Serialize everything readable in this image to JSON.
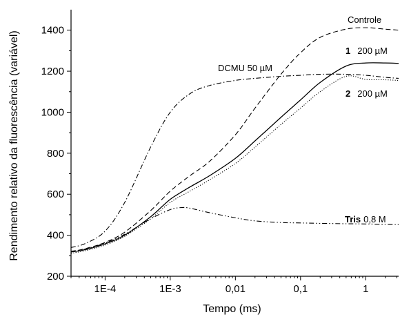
{
  "chart_data": {
    "type": "line",
    "title": "",
    "xlabel": "Tempo (ms)",
    "ylabel": "Rendimento relativo da fluorescência (variável)",
    "x_scale": "log",
    "xlim": [
      3e-05,
      3.2
    ],
    "ylim": [
      200,
      1500
    ],
    "x_ticks": [
      {
        "value": 0.0001,
        "label": "1E-4"
      },
      {
        "value": 0.001,
        "label": "1E-3"
      },
      {
        "value": 0.01,
        "label": "0,01"
      },
      {
        "value": 0.1,
        "label": "0,1"
      },
      {
        "value": 1,
        "label": "1"
      }
    ],
    "y_ticks": [
      {
        "value": 200,
        "label": "200"
      },
      {
        "value": 400,
        "label": "400"
      },
      {
        "value": 600,
        "label": "600"
      },
      {
        "value": 800,
        "label": "800"
      },
      {
        "value": 1000,
        "label": "1000"
      },
      {
        "value": 1200,
        "label": "1200"
      },
      {
        "value": 1400,
        "label": "1400"
      }
    ],
    "grid": false,
    "annotations": [
      {
        "id": "controle",
        "parts": [
          {
            "text": "Controle",
            "bold": false
          }
        ]
      },
      {
        "id": "cmp1",
        "parts": [
          {
            "text": "1",
            "bold": true
          },
          {
            "text": "200 µM",
            "bold": false
          }
        ]
      },
      {
        "id": "dcmu",
        "parts": [
          {
            "text": "DCMU 50 µM",
            "bold": false
          }
        ]
      },
      {
        "id": "cmp2",
        "parts": [
          {
            "text": "2",
            "bold": true
          },
          {
            "text": "200 µM",
            "bold": false
          }
        ]
      },
      {
        "id": "tris",
        "parts": [
          {
            "text": "Tris",
            "bold": true
          },
          {
            "text": "0,8 M",
            "bold": false
          }
        ]
      }
    ],
    "series": [
      {
        "style": "dashed",
        "x": [
          3e-05,
          5e-05,
          0.0001,
          0.0002,
          0.0005,
          0.001,
          0.002,
          0.004,
          0.01,
          0.02,
          0.05,
          0.1,
          0.2,
          0.5,
          1,
          2,
          3.2
        ],
        "y": [
          320,
          335,
          365,
          415,
          520,
          615,
          690,
          760,
          890,
          1020,
          1185,
          1290,
          1365,
          1405,
          1412,
          1405,
          1400
        ]
      },
      {
        "style": "solid",
        "x": [
          3e-05,
          5e-05,
          0.0001,
          0.0002,
          0.0005,
          0.001,
          0.002,
          0.004,
          0.01,
          0.02,
          0.05,
          0.1,
          0.2,
          0.5,
          1,
          2,
          3.2
        ],
        "y": [
          318,
          330,
          358,
          400,
          490,
          575,
          635,
          690,
          775,
          860,
          975,
          1060,
          1145,
          1225,
          1240,
          1240,
          1238
        ]
      },
      {
        "style": "dotted",
        "x": [
          3e-05,
          5e-05,
          0.0001,
          0.0002,
          0.0005,
          0.001,
          0.002,
          0.004,
          0.01,
          0.02,
          0.05,
          0.1,
          0.2,
          0.5,
          1,
          2,
          3.2
        ],
        "y": [
          312,
          325,
          352,
          395,
          480,
          560,
          615,
          670,
          750,
          830,
          940,
          1020,
          1100,
          1175,
          1160,
          1158,
          1155
        ]
      },
      {
        "style": "dashdot",
        "x": [
          3e-05,
          5e-05,
          0.0001,
          0.0002,
          0.0005,
          0.001,
          0.002,
          0.004,
          0.01,
          0.02,
          0.05,
          0.1,
          0.2,
          0.5,
          1,
          2,
          3.2
        ],
        "y": [
          340,
          360,
          420,
          560,
          830,
          1000,
          1090,
          1130,
          1155,
          1165,
          1175,
          1180,
          1185,
          1185,
          1180,
          1170,
          1165
        ]
      },
      {
        "style": "dashdotdot",
        "x": [
          3e-05,
          5e-05,
          0.0001,
          0.0002,
          0.0005,
          0.001,
          0.0015,
          0.002,
          0.004,
          0.01,
          0.02,
          0.05,
          0.1,
          0.2,
          0.5,
          1,
          2,
          3.2
        ],
        "y": [
          322,
          333,
          362,
          405,
          480,
          525,
          535,
          532,
          510,
          485,
          470,
          462,
          460,
          458,
          456,
          455,
          453,
          452
        ]
      }
    ]
  }
}
